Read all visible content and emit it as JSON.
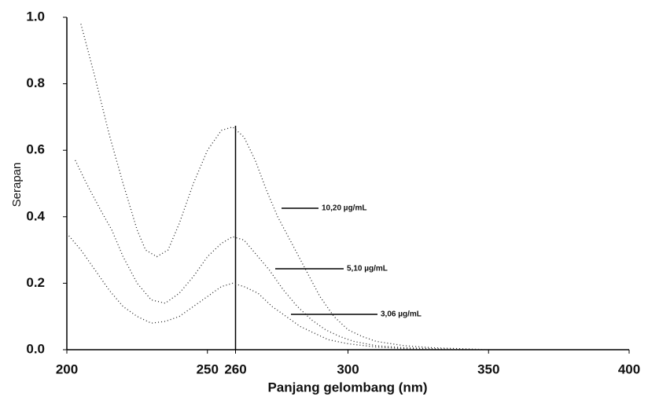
{
  "chart_data": {
    "type": "line",
    "x_label": "Panjang gelombang (nm)",
    "y_label": "Serapan",
    "xlim": [
      200,
      400
    ],
    "ylim": [
      0,
      1
    ],
    "xticks": [
      200,
      250,
      260,
      300,
      350,
      400
    ],
    "yticks": [
      {
        "value": 0,
        "label": "0.0"
      },
      {
        "value": 0.2,
        "label": "0.2"
      },
      {
        "value": 0.4,
        "label": "0.4"
      },
      {
        "value": 0.6,
        "label": "0.6"
      },
      {
        "value": 0.8,
        "label": "0.8"
      },
      {
        "value": 1,
        "label": "1.0"
      }
    ],
    "annotations": [
      "10,20 µg/mL",
      "5,10 µg/mL",
      "3,06 µg/mL"
    ],
    "series": [
      {
        "color": "#222222",
        "x": [
          205,
          210,
          215,
          220,
          225,
          228,
          232,
          236,
          240,
          245,
          250,
          255,
          259,
          263,
          267,
          271,
          275,
          280,
          285,
          290,
          295,
          300,
          305,
          310,
          320,
          330,
          340,
          350
        ],
        "values": [
          0.98,
          0.82,
          0.65,
          0.5,
          0.36,
          0.3,
          0.28,
          0.3,
          0.38,
          0.5,
          0.6,
          0.66,
          0.67,
          0.64,
          0.57,
          0.48,
          0.4,
          0.32,
          0.24,
          0.16,
          0.1,
          0.06,
          0.04,
          0.025,
          0.012,
          0.006,
          0.003,
          0
        ]
      },
      {
        "color": "#222222",
        "x": [
          203,
          207,
          212,
          216,
          220,
          225,
          230,
          235,
          240,
          245,
          250,
          255,
          259,
          263,
          267,
          272,
          277,
          282,
          287,
          292,
          297,
          302,
          310,
          320,
          330,
          340
        ],
        "values": [
          0.57,
          0.5,
          0.42,
          0.36,
          0.28,
          0.2,
          0.15,
          0.14,
          0.17,
          0.22,
          0.28,
          0.32,
          0.34,
          0.33,
          0.29,
          0.24,
          0.18,
          0.13,
          0.09,
          0.06,
          0.04,
          0.025,
          0.012,
          0.006,
          0.003,
          0
        ]
      },
      {
        "color": "#222222",
        "x": [
          200,
          205,
          210,
          215,
          220,
          225,
          230,
          235,
          240,
          245,
          250,
          255,
          259,
          263,
          268,
          273,
          278,
          283,
          288,
          293,
          300,
          310,
          320,
          330
        ],
        "values": [
          0.35,
          0.3,
          0.24,
          0.18,
          0.13,
          0.1,
          0.08,
          0.085,
          0.1,
          0.13,
          0.16,
          0.19,
          0.2,
          0.19,
          0.17,
          0.13,
          0.1,
          0.07,
          0.05,
          0.03,
          0.018,
          0.008,
          0.003,
          0
        ]
      }
    ]
  }
}
